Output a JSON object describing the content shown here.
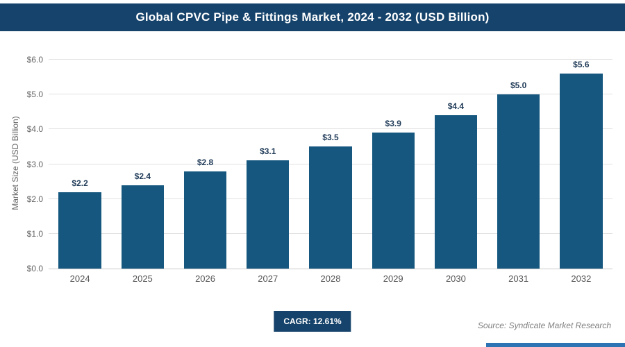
{
  "title": "Global CPVC Pipe & Fittings Market, 2024 - 2032 (USD Billion)",
  "footer": {
    "cagr_label": "CAGR: 12.61%",
    "source": "Source: Syndicate Market Research"
  },
  "colors": {
    "header_bg": "#16436B",
    "badge_bg": "#16436B",
    "bar": "#15577F",
    "accent_bar": "#2E74B5",
    "value_label": "#1F3A57",
    "grid": "#E2E2E2"
  },
  "chart_data": {
    "type": "bar",
    "title": "Global CPVC Pipe & Fittings Market, 2024 - 2032 (USD Billion)",
    "categories": [
      "2024",
      "2025",
      "2026",
      "2027",
      "2028",
      "2029",
      "2030",
      "2031",
      "2032"
    ],
    "values": [
      2.2,
      2.4,
      2.8,
      3.1,
      3.5,
      3.9,
      4.4,
      5.0,
      5.6
    ],
    "value_labels": [
      "$2.2",
      "$2.4",
      "$2.8",
      "$3.1",
      "$3.5",
      "$3.9",
      "$4.4",
      "$5.0",
      "$5.6"
    ],
    "xlabel": "",
    "ylabel": "Market Size (USD Billion)",
    "ylim": [
      0,
      6
    ],
    "ytick_values": [
      0,
      1,
      2,
      3,
      4,
      5,
      6
    ],
    "ytick_labels": [
      "$0.0",
      "$1.0",
      "$2.0",
      "$3.0",
      "$4.0",
      "$5.0",
      "$6.0"
    ],
    "grid": "horizontal",
    "legend": "none",
    "bar_color": "#15577F"
  }
}
